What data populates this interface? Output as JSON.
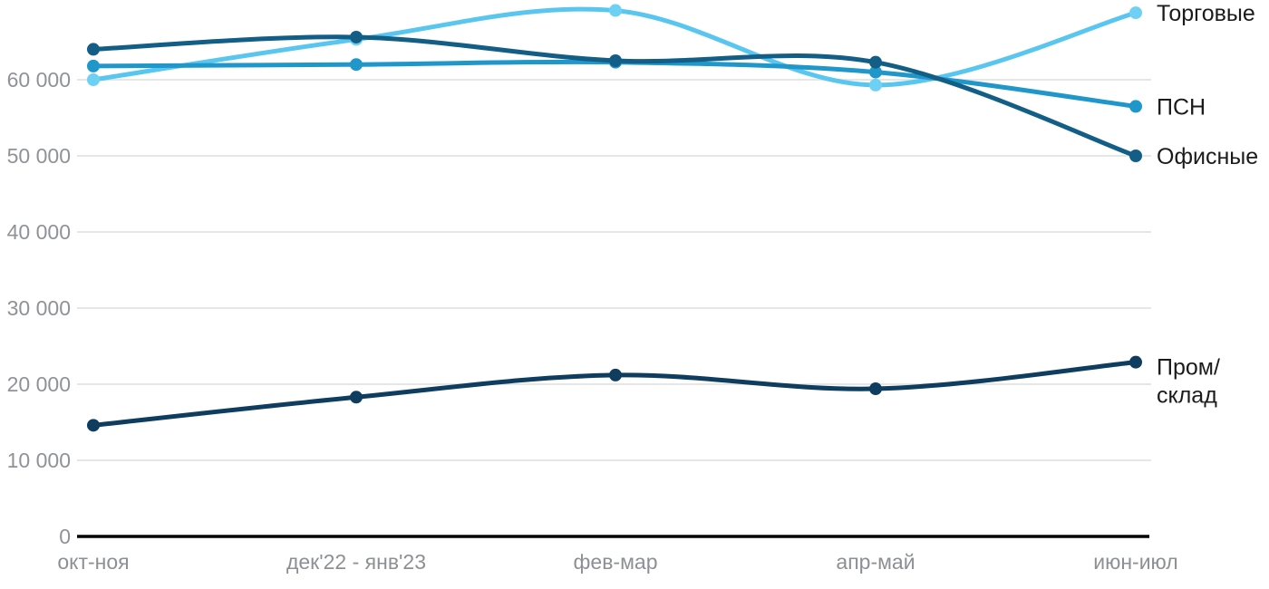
{
  "chart_data": {
    "type": "line",
    "title": "",
    "xlabel": "",
    "ylabel": "",
    "categories": [
      "окт-ноя",
      "дек'22 - янв'23",
      "фев-мар",
      "апр-май",
      "июн-июл"
    ],
    "series": [
      {
        "name": "Торговые",
        "color": "#59c6f0",
        "marker_color": "#6fd0f5",
        "values": [
          60000,
          65300,
          69100,
          59300,
          68800
        ],
        "label_lines": [
          "Торговые"
        ]
      },
      {
        "name": "ПСН",
        "color": "#2097cb",
        "marker_color": "#2097cb",
        "values": [
          61800,
          62000,
          62300,
          61000,
          56500
        ],
        "label_lines": [
          "ПСН"
        ]
      },
      {
        "name": "Офисные",
        "color": "#125e86",
        "marker_color": "#125e86",
        "values": [
          64000,
          65600,
          62500,
          62300,
          50000
        ],
        "label_lines": [
          "Офисные"
        ]
      },
      {
        "name": "Пром/склад",
        "color": "#0e3d5f",
        "marker_color": "#0e3d5f",
        "values": [
          14600,
          18300,
          21200,
          19400,
          22900
        ],
        "label_lines": [
          "Пром/",
          "склад"
        ]
      }
    ],
    "y_tick_labels": [
      "0",
      "10 000",
      "20 000",
      "30 000",
      "40 000",
      "50 000",
      "60 000"
    ],
    "y_tick_values": [
      0,
      10000,
      20000,
      30000,
      40000,
      50000,
      60000
    ],
    "ylim": [
      0,
      70500
    ],
    "grid": "horizontal",
    "legend_position": "right-of-line-ends",
    "colors": {
      "background": "#ffffff",
      "gridline": "#e6e6e6",
      "axis_line": "#000000",
      "tick_text": "#8f9296",
      "legend_text": "#1b1b1b"
    }
  }
}
